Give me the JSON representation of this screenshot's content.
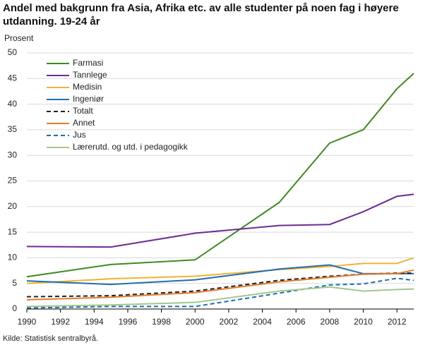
{
  "chart_data": {
    "type": "line",
    "title": "Andel med bakgrunn fra Asia, Afrika etc. av alle studenter på noen fag i høyere utdanning. 19-24 år",
    "y_label": "Prosent",
    "source": "Kilde: Statistisk sentralbyrå.",
    "x": [
      1990,
      1995,
      2000,
      2005,
      2008,
      2010,
      2012,
      2013
    ],
    "xlim": [
      1990,
      2013
    ],
    "xticks": [
      1990,
      1992,
      1994,
      1996,
      1998,
      2000,
      2002,
      2004,
      2006,
      2008,
      2010,
      2012
    ],
    "ylim": [
      0,
      50
    ],
    "yticks": [
      0,
      5,
      10,
      15,
      20,
      25,
      30,
      35,
      40,
      45,
      50
    ],
    "grid": true,
    "legend": "top-left",
    "series": [
      {
        "name": "Farmasi",
        "color": "#3d8b1f",
        "dashed": false,
        "values": [
          6.3,
          8.7,
          9.6,
          20.8,
          32.4,
          35,
          43,
          46
        ]
      },
      {
        "name": "Tannlege",
        "color": "#6b2c91",
        "dashed": false,
        "values": [
          12.2,
          12.1,
          14.8,
          16.3,
          16.5,
          19,
          22,
          22.4
        ]
      },
      {
        "name": "Medisin",
        "color": "#f2b233",
        "dashed": false,
        "values": [
          5.0,
          5.9,
          6.4,
          7.7,
          8.3,
          8.9,
          8.9,
          10.0
        ]
      },
      {
        "name": "Ingeniør",
        "color": "#1f6db2",
        "dashed": false,
        "values": [
          5.5,
          4.8,
          5.7,
          7.8,
          8.6,
          6.9,
          6.9,
          6.9
        ]
      },
      {
        "name": "Totalt",
        "color": "#222222",
        "dashed": true,
        "values": [
          2.4,
          2.6,
          3.5,
          5.6,
          6.4,
          6.8,
          7.0,
          7.0
        ]
      },
      {
        "name": "Annet",
        "color": "#e57c2a",
        "dashed": false,
        "values": [
          1.8,
          2.3,
          3.2,
          5.3,
          6.2,
          6.8,
          6.9,
          7.6
        ]
      },
      {
        "name": "Jus",
        "color": "#1f6db2",
        "dashed": true,
        "values": [
          0.2,
          0.5,
          0.5,
          3.1,
          4.7,
          4.9,
          6.0,
          5.6
        ]
      },
      {
        "name": "Lærerutd. og utd. i pedagogikk",
        "color": "#9dc98a",
        "dashed": false,
        "values": [
          0.5,
          0.8,
          1.3,
          3.5,
          4.3,
          3.5,
          3.8,
          3.9
        ]
      }
    ]
  }
}
